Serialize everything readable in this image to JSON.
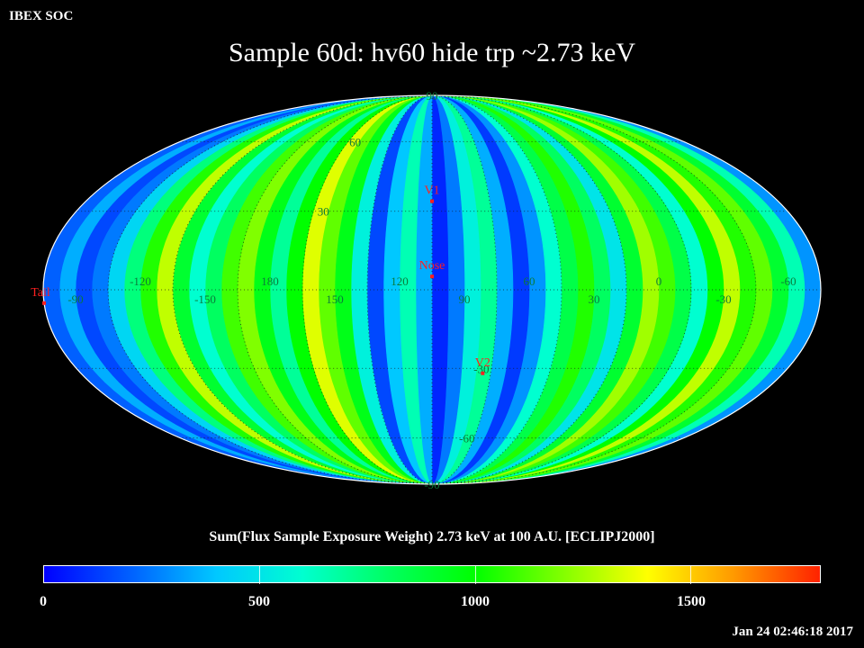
{
  "header": {
    "org": "IBEX SOC",
    "timestamp": "Jan 24 02:46:18 2017"
  },
  "chart_data": {
    "type": "heatmap",
    "projection": "mollweide",
    "title": "Sample 60d: hv60 hide trp ~2.73 keV",
    "colorbar_title": "Sum(Flux Sample Exposure Weight)  2.73 keV at 100 A.U. [ECLIPJ2000]",
    "colorbar_range": [
      0,
      1800
    ],
    "colorbar_ticks": [
      0,
      500,
      1000,
      1500
    ],
    "colorbar_tick_labels": [
      "0",
      "500",
      "1000",
      "1500"
    ],
    "colorscale": [
      "#0000ff",
      "#0060ff",
      "#00c8ff",
      "#00ffd0",
      "#00ff60",
      "#00ff00",
      "#80ff00",
      "#ffff00",
      "#ff9900",
      "#ff2200"
    ],
    "center_longitude": 105,
    "longitude_labels": [
      {
        "lon": 60,
        "text": "60"
      },
      {
        "lon": 30,
        "text": "30"
      },
      {
        "lon": 0,
        "text": "0"
      },
      {
        "lon": -30,
        "text": "-30"
      },
      {
        "lon": -60,
        "text": "-60"
      },
      {
        "lon": -90,
        "text": "-90"
      },
      {
        "lon": -120,
        "text": "-120"
      },
      {
        "lon": -150,
        "text": "-150"
      },
      {
        "lon": 180,
        "text": "180"
      },
      {
        "lon": 150,
        "text": "150"
      },
      {
        "lon": 120,
        "text": "120"
      },
      {
        "lon": 90,
        "text": "90"
      }
    ],
    "latitude_labels": [
      {
        "lat": 90,
        "text": "90"
      },
      {
        "lat": 60,
        "text": "60"
      },
      {
        "lat": 30,
        "text": "30"
      },
      {
        "lat": -30,
        "text": "-30"
      },
      {
        "lat": -60,
        "text": "-60"
      },
      {
        "lat": -90,
        "text": "-90"
      }
    ],
    "markers": [
      {
        "name": "V1",
        "lon": 105,
        "lat": 34
      },
      {
        "name": "Nose",
        "lon": 105,
        "lat": 5
      },
      {
        "name": "Tail",
        "lon": 285,
        "lat": -5
      },
      {
        "name": "V2",
        "lon": 79,
        "lat": -32
      }
    ],
    "stripe_values": [
      300,
      650,
      900,
      1150,
      1050,
      1300,
      1000,
      600,
      850,
      1100,
      1250,
      900,
      500,
      800,
      1050,
      850,
      600,
      300,
      120,
      350,
      700,
      550,
      250,
      80,
      350,
      650,
      400,
      150,
      550,
      950,
      1150,
      1350,
      1000,
      700,
      950,
      1200,
      1100,
      800,
      600,
      900,
      1300,
      1050,
      750,
      450,
      250,
      150,
      350,
      200
    ]
  }
}
